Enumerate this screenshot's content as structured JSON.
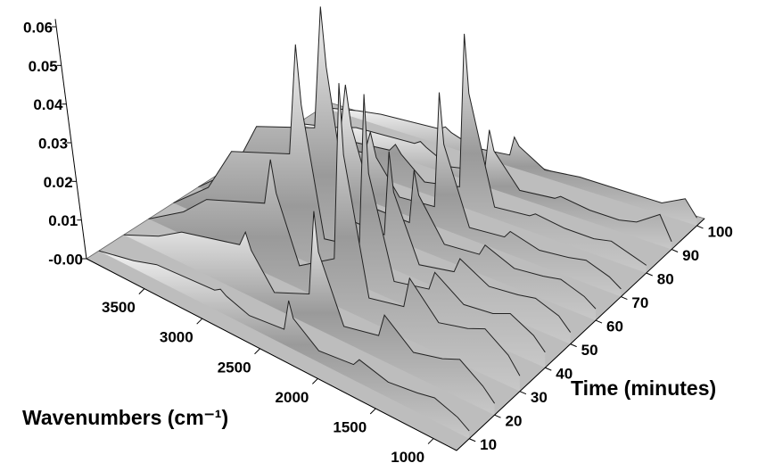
{
  "chart_data": {
    "type": "waterfall",
    "xlabel": "Wavenumbers (cm⁻¹)",
    "ylabel": "Time (minutes)",
    "xlim": [
      4000,
      800
    ],
    "ylim": [
      5,
      103
    ],
    "zlim": [
      0,
      0.062
    ],
    "xticks": [
      3500,
      3000,
      2500,
      2000,
      1500,
      1000
    ],
    "yticks": [
      10,
      20,
      30,
      40,
      50,
      60,
      70,
      80,
      90,
      100
    ],
    "zticks": [
      {
        "value": 0,
        "label": "-0.00"
      },
      0.01,
      0.02,
      0.03,
      0.04,
      0.05,
      0.06
    ],
    "x": [
      4000,
      3700,
      3500,
      3000,
      2950,
      2900,
      2700,
      2400,
      2360,
      2320,
      2100,
      1800,
      1750,
      1500,
      1250,
      1100,
      900,
      800
    ],
    "series": [
      {
        "time": 10,
        "values": [
          0,
          0.002,
          0.004,
          0.005,
          0.006,
          0.005,
          0.003,
          0.004,
          0.012,
          0.008,
          0.003,
          0.004,
          0.006,
          0.004,
          0.005,
          0.006,
          0.004,
          0.002
        ]
      },
      {
        "time": 20,
        "values": [
          0,
          0.004,
          0.008,
          0.012,
          0.016,
          0.012,
          0.004,
          0.008,
          0.03,
          0.02,
          0.004,
          0.006,
          0.012,
          0.006,
          0.008,
          0.01,
          0.006,
          0.003
        ]
      },
      {
        "time": 30,
        "values": [
          0,
          0.006,
          0.012,
          0.018,
          0.03,
          0.022,
          0.006,
          0.012,
          0.058,
          0.04,
          0.006,
          0.008,
          0.016,
          0.008,
          0.01,
          0.012,
          0.008,
          0.004
        ]
      },
      {
        "time": 40,
        "values": [
          0,
          0.008,
          0.02,
          0.026,
          0.055,
          0.04,
          0.008,
          0.01,
          0.05,
          0.03,
          0.005,
          0.007,
          0.012,
          0.007,
          0.008,
          0.01,
          0.007,
          0.004
        ]
      },
      {
        "time": 50,
        "values": [
          0,
          0.008,
          0.022,
          0.028,
          0.06,
          0.045,
          0.008,
          0.008,
          0.03,
          0.02,
          0.004,
          0.006,
          0.01,
          0.006,
          0.007,
          0.008,
          0.006,
          0.003
        ]
      },
      {
        "time": 60,
        "values": [
          0,
          0.006,
          0.015,
          0.02,
          0.035,
          0.025,
          0.006,
          0.006,
          0.02,
          0.014,
          0.004,
          0.005,
          0.008,
          0.005,
          0.006,
          0.007,
          0.005,
          0.003
        ]
      },
      {
        "time": 70,
        "values": [
          0,
          0.004,
          0.01,
          0.012,
          0.018,
          0.012,
          0.004,
          0.005,
          0.035,
          0.022,
          0.003,
          0.004,
          0.006,
          0.004,
          0.005,
          0.006,
          0.004,
          0.002
        ]
      },
      {
        "time": 80,
        "values": [
          0,
          0.003,
          0.006,
          0.008,
          0.01,
          0.008,
          0.003,
          0.005,
          0.045,
          0.03,
          0.003,
          0.004,
          0.005,
          0.004,
          0.004,
          0.005,
          0.003,
          0.002
        ]
      },
      {
        "time": 90,
        "values": [
          0,
          0.002,
          0.004,
          0.005,
          0.006,
          0.005,
          0.002,
          0.004,
          0.015,
          0.01,
          0.002,
          0.003,
          0.004,
          0.003,
          0.003,
          0.004,
          0.008,
          0.002
        ]
      },
      {
        "time": 100,
        "values": [
          0,
          0.002,
          0.003,
          0.004,
          0.005,
          0.004,
          0.002,
          0.003,
          0.008,
          0.006,
          0.002,
          0.003,
          0.003,
          0.003,
          0.003,
          0.003,
          0.006,
          0.002
        ]
      }
    ]
  }
}
